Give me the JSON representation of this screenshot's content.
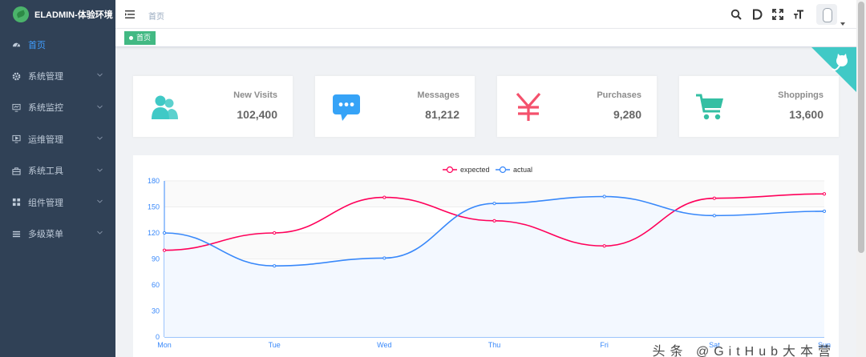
{
  "app": {
    "title": "ELADMIN-体验环境"
  },
  "sidebar": {
    "items": [
      {
        "label": "首页",
        "icon": "dashboard-icon",
        "active": true,
        "has_children": false
      },
      {
        "label": "系统管理",
        "icon": "gear-icon",
        "active": false,
        "has_children": true
      },
      {
        "label": "系统监控",
        "icon": "monitor-icon",
        "active": false,
        "has_children": true
      },
      {
        "label": "运维管理",
        "icon": "ops-monitor-icon",
        "active": false,
        "has_children": true
      },
      {
        "label": "系统工具",
        "icon": "toolbox-icon",
        "active": false,
        "has_children": true
      },
      {
        "label": "组件管理",
        "icon": "grid-icon",
        "active": false,
        "has_children": true
      },
      {
        "label": "多级菜单",
        "icon": "list-icon",
        "active": false,
        "has_children": true
      }
    ]
  },
  "navbar": {
    "breadcrumb": "首页",
    "icons": [
      "search-icon",
      "doc-icon",
      "fullscreen-icon",
      "font-size-icon"
    ]
  },
  "tags_view": {
    "tags": [
      {
        "label": "首页",
        "active": true
      }
    ]
  },
  "panels": [
    {
      "label": "New Visits",
      "value": "102,400",
      "icon": "people-icon",
      "color": "#40c9c6"
    },
    {
      "label": "Messages",
      "value": "81,212",
      "icon": "message-icon",
      "color": "#36a3f7"
    },
    {
      "label": "Purchases",
      "value": "9,280",
      "icon": "yen-icon",
      "color": "#f4516c"
    },
    {
      "label": "Shoppings",
      "value": "13,600",
      "icon": "shopping-cart-icon",
      "color": "#34bfa3"
    }
  ],
  "chart_data": {
    "type": "line",
    "categories": [
      "Mon",
      "Tue",
      "Wed",
      "Thu",
      "Fri",
      "Sat",
      "Sun"
    ],
    "series": [
      {
        "name": "expected",
        "values": [
          100,
          120,
          161,
          134,
          105,
          160,
          165
        ],
        "color": "#ff005a"
      },
      {
        "name": "actual",
        "values": [
          120,
          82,
          91,
          154,
          162,
          140,
          145
        ],
        "color": "#3888fa"
      }
    ],
    "yticks": [
      "0",
      "30",
      "60",
      "90",
      "120",
      "150",
      "180"
    ],
    "ylim": [
      0,
      180
    ],
    "legend_position": "top-center",
    "smooth": true
  },
  "watermark": "头条 @GitHub大本营"
}
